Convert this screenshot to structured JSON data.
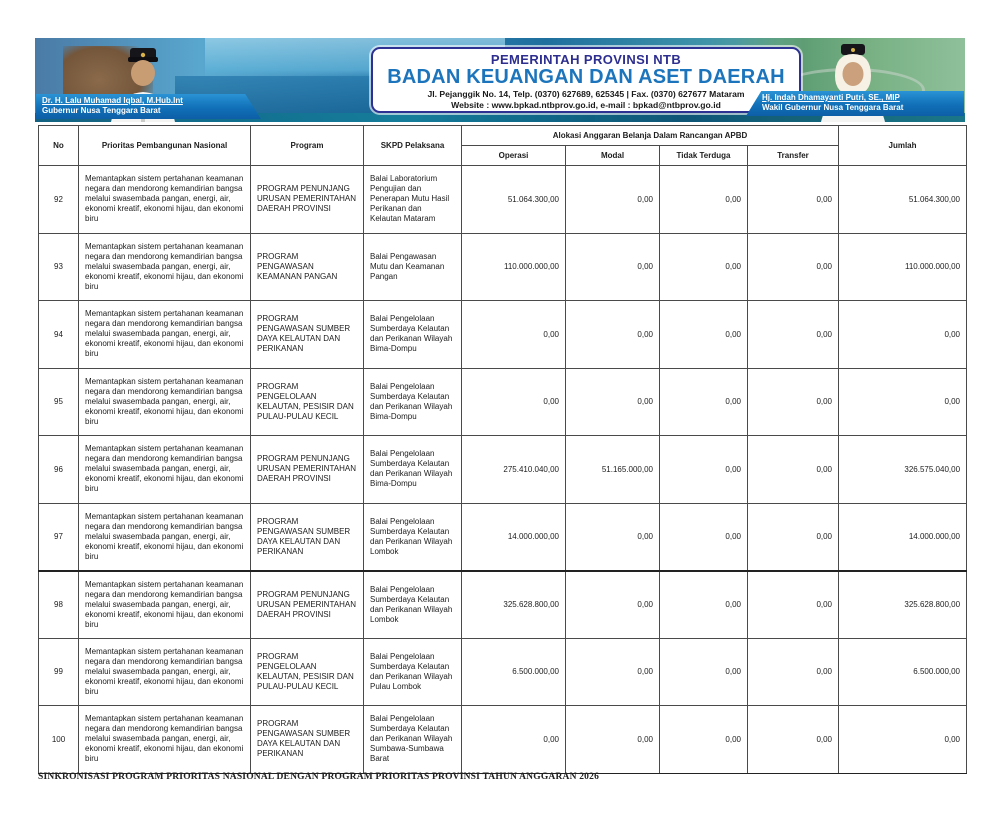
{
  "banner": {
    "left_official": {
      "name": "Dr. H. Lalu Muhamad Iqbal, M.Hub.Int",
      "title": "Gubernur Nusa Tenggara Barat"
    },
    "right_official": {
      "name": "Hj. Indah Dhamayanti Putri, SE., MIP",
      "title": "Wakil Gubernur Nusa Tenggara Barat"
    },
    "government": "PEMERINTAH PROVINSI NTB",
    "agency": "BADAN KEUANGAN DAN ASET DAERAH",
    "address": "Jl. Pejanggik No. 14, Telp. (0370) 627689, 625345 | Fax. (0370) 627677 Mataram",
    "website": "Website : www.bpkad.ntbprov.go.id, e-mail : bpkad@ntbprov.go.id"
  },
  "colors": {
    "government_navy": "#2d2e8f",
    "agency_blue": "#1c75bc",
    "caption_blue": "#1170b8",
    "banner_teal": "#0d6f86"
  },
  "table": {
    "headers": {
      "no": "No",
      "prioritas": "Prioritas Pembangunan Nasional",
      "program": "Program",
      "skpd": "SKPD Pelaksana",
      "alokasi_group": "Alokasi Anggaran Belanja Dalam Rancangan APBD",
      "operasi": "Operasi",
      "modal": "Modal",
      "tidak_terduga": "Tidak Terduga",
      "transfer": "Transfer",
      "jumlah": "Jumlah"
    },
    "rows": [
      {
        "no": "92",
        "prioritas": "Memantapkan sistem pertahanan keamanan negara dan mendorong kemandirian bangsa melalui swasembada pangan, energi, air, ekonomi kreatif, ekonomi hijau, dan ekonomi biru",
        "program": "PROGRAM PENUNJANG URUSAN PEMERINTAHAN DAERAH PROVINSI",
        "skpd": "Balai Laboratorium Pengujian dan Penerapan Mutu Hasil Perikanan dan Kelautan Mataram",
        "operasi": "51.064.300,00",
        "modal": "0,00",
        "tidak_terduga": "0,00",
        "transfer": "0,00",
        "jumlah": "51.064.300,00"
      },
      {
        "no": "93",
        "prioritas": "Memantapkan sistem pertahanan keamanan negara dan mendorong kemandirian bangsa melalui swasembada pangan, energi, air, ekonomi kreatif, ekonomi hijau, dan ekonomi biru",
        "program": "PROGRAM PENGAWASAN KEAMANAN PANGAN",
        "skpd": "Balai Pengawasan Mutu dan Keamanan Pangan",
        "operasi": "110.000.000,00",
        "modal": "0,00",
        "tidak_terduga": "0,00",
        "transfer": "0,00",
        "jumlah": "110.000.000,00"
      },
      {
        "no": "94",
        "prioritas": "Memantapkan sistem pertahanan keamanan negara dan mendorong kemandirian bangsa melalui swasembada pangan, energi, air, ekonomi kreatif, ekonomi hijau, dan ekonomi biru",
        "program": "PROGRAM PENGAWASAN SUMBER DAYA KELAUTAN DAN PERIKANAN",
        "skpd": "Balai Pengelolaan Sumberdaya Kelautan dan Perikanan Wilayah Bima-Dompu",
        "operasi": "0,00",
        "modal": "0,00",
        "tidak_terduga": "0,00",
        "transfer": "0,00",
        "jumlah": "0,00"
      },
      {
        "no": "95",
        "prioritas": "Memantapkan sistem pertahanan keamanan negara dan mendorong kemandirian bangsa melalui swasembada pangan, energi, air, ekonomi kreatif, ekonomi hijau, dan ekonomi biru",
        "program": "PROGRAM PENGELOLAAN KELAUTAN, PESISIR DAN PULAU-PULAU KECIL",
        "skpd": "Balai Pengelolaan Sumberdaya Kelautan dan Perikanan Wilayah Bima-Dompu",
        "operasi": "0,00",
        "modal": "0,00",
        "tidak_terduga": "0,00",
        "transfer": "0,00",
        "jumlah": "0,00"
      },
      {
        "no": "96",
        "prioritas": "Memantapkan sistem pertahanan keamanan negara dan mendorong kemandirian bangsa melalui swasembada pangan, energi, air, ekonomi kreatif, ekonomi hijau, dan ekonomi biru",
        "program": "PROGRAM PENUNJANG URUSAN PEMERINTAHAN DAERAH PROVINSI",
        "skpd": "Balai Pengelolaan Sumberdaya Kelautan dan Perikanan Wilayah Bima-Dompu",
        "operasi": "275.410.040,00",
        "modal": "51.165.000,00",
        "tidak_terduga": "0,00",
        "transfer": "0,00",
        "jumlah": "326.575.040,00"
      },
      {
        "no": "97",
        "prioritas": "Memantapkan sistem pertahanan keamanan negara dan mendorong kemandirian bangsa melalui swasembada pangan, energi, air, ekonomi kreatif, ekonomi hijau, dan ekonomi biru",
        "program": "PROGRAM PENGAWASAN SUMBER DAYA KELAUTAN DAN PERIKANAN",
        "skpd": "Balai Pengelolaan Sumberdaya Kelautan dan Perikanan Wilayah Lombok",
        "operasi": "14.000.000,00",
        "modal": "0,00",
        "tidak_terduga": "0,00",
        "transfer": "0,00",
        "jumlah": "14.000.000,00"
      },
      {
        "no": "98",
        "prioritas": "Memantapkan sistem pertahanan keamanan negara dan mendorong kemandirian bangsa melalui swasembada pangan, energi, air, ekonomi kreatif, ekonomi hijau, dan ekonomi biru",
        "program": "PROGRAM PENUNJANG URUSAN PEMERINTAHAN DAERAH PROVINSI",
        "skpd": "Balai Pengelolaan Sumberdaya Kelautan dan Perikanan Wilayah Lombok",
        "operasi": "325.628.800,00",
        "modal": "0,00",
        "tidak_terduga": "0,00",
        "transfer": "0,00",
        "jumlah": "325.628.800,00"
      },
      {
        "no": "99",
        "prioritas": "Memantapkan sistem pertahanan keamanan negara dan mendorong kemandirian bangsa melalui swasembada pangan, energi, air, ekonomi kreatif, ekonomi hijau, dan ekonomi biru",
        "program": "PROGRAM PENGELOLAAN KELAUTAN, PESISIR DAN PULAU-PULAU KECIL",
        "skpd": "Balai Pengelolaan Sumberdaya Kelautan dan Perikanan Wilayah Pulau Lombok",
        "operasi": "6.500.000,00",
        "modal": "0,00",
        "tidak_terduga": "0,00",
        "transfer": "0,00",
        "jumlah": "6.500.000,00"
      },
      {
        "no": "100",
        "prioritas": "Memantapkan sistem pertahanan keamanan negara dan mendorong kemandirian bangsa melalui swasembada pangan, energi, air, ekonomi kreatif, ekonomi hijau, dan ekonomi biru",
        "program": "PROGRAM PENGAWASAN SUMBER DAYA KELAUTAN DAN PERIKANAN",
        "skpd": "Balai Pengelolaan Sumberdaya Kelautan dan Perikanan Wilayah Sumbawa-Sumbawa Barat",
        "operasi": "0,00",
        "modal": "0,00",
        "tidak_terduga": "0,00",
        "transfer": "0,00",
        "jumlah": "0,00"
      }
    ]
  },
  "footer": {
    "caption": "SINKRONISASI PROGRAM PRIORITAS NASIONAL DENGAN PROGRAM PRIORITAS PROVINSI TAHUN ANGGARAN 2026"
  }
}
